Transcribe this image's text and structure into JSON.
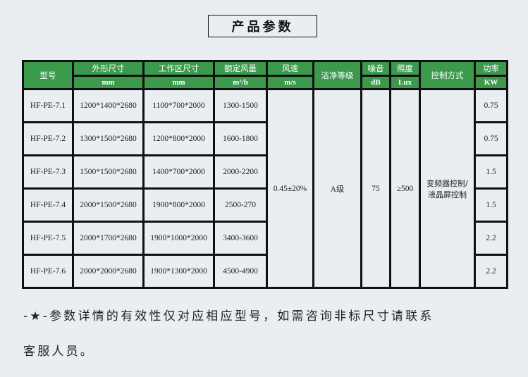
{
  "title": "产品参数",
  "headers": {
    "model": "型号",
    "outer": "外形尺寸",
    "work": "工作区尺寸",
    "airflow": "额定风量",
    "speed": "风速",
    "clean": "洁净等级",
    "noise": "噪音",
    "light": "照度",
    "control": "控制方式",
    "power": "功率"
  },
  "units": {
    "outer": "mm",
    "work": "mm",
    "airflow": "m³/h",
    "speed": "m/s",
    "noise": "dB",
    "light": "Lux",
    "power": "KW"
  },
  "rows": [
    {
      "model": "HF-PE-7.1",
      "outer": "1200*1400*2680",
      "work": "1100*700*2000",
      "airflow": "1300-1500",
      "power": "0.75"
    },
    {
      "model": "HF-PE-7.2",
      "outer": "1300*1500*2680",
      "work": "1200*800*2000",
      "airflow": "1600-1800",
      "power": "0.75"
    },
    {
      "model": "HF-PE-7.3",
      "outer": "1500*1500*2680",
      "work": "1400*700*2000",
      "airflow": "2000-2200",
      "power": "1.5"
    },
    {
      "model": "HF-PE-7.4",
      "outer": "2000*1500*2680",
      "work": "1900*800*2000",
      "airflow": "2500-270",
      "power": "1.5"
    },
    {
      "model": "HF-PE-7.5",
      "outer": "2000*1700*2680",
      "work": "1900*1000*2000",
      "airflow": "3400-3600",
      "power": "2.2"
    },
    {
      "model": "HF-PE-7.6",
      "outer": "2000*2000*2680",
      "work": "1900*1300*2000",
      "airflow": "4500-4900",
      "power": "2.2"
    }
  ],
  "shared": {
    "speed": "0.45±20%",
    "clean": "A级",
    "noise": "75",
    "light": "≥500",
    "control": "变频器控制/液晶屏控制"
  },
  "note": {
    "line1": "-★-参数详情的有效性仅对应相应型号，如需咨询非标尺寸请联系",
    "line2": "客服人员。"
  },
  "colors": {
    "header": "#3b9a4c",
    "background": "#e9eef3"
  }
}
